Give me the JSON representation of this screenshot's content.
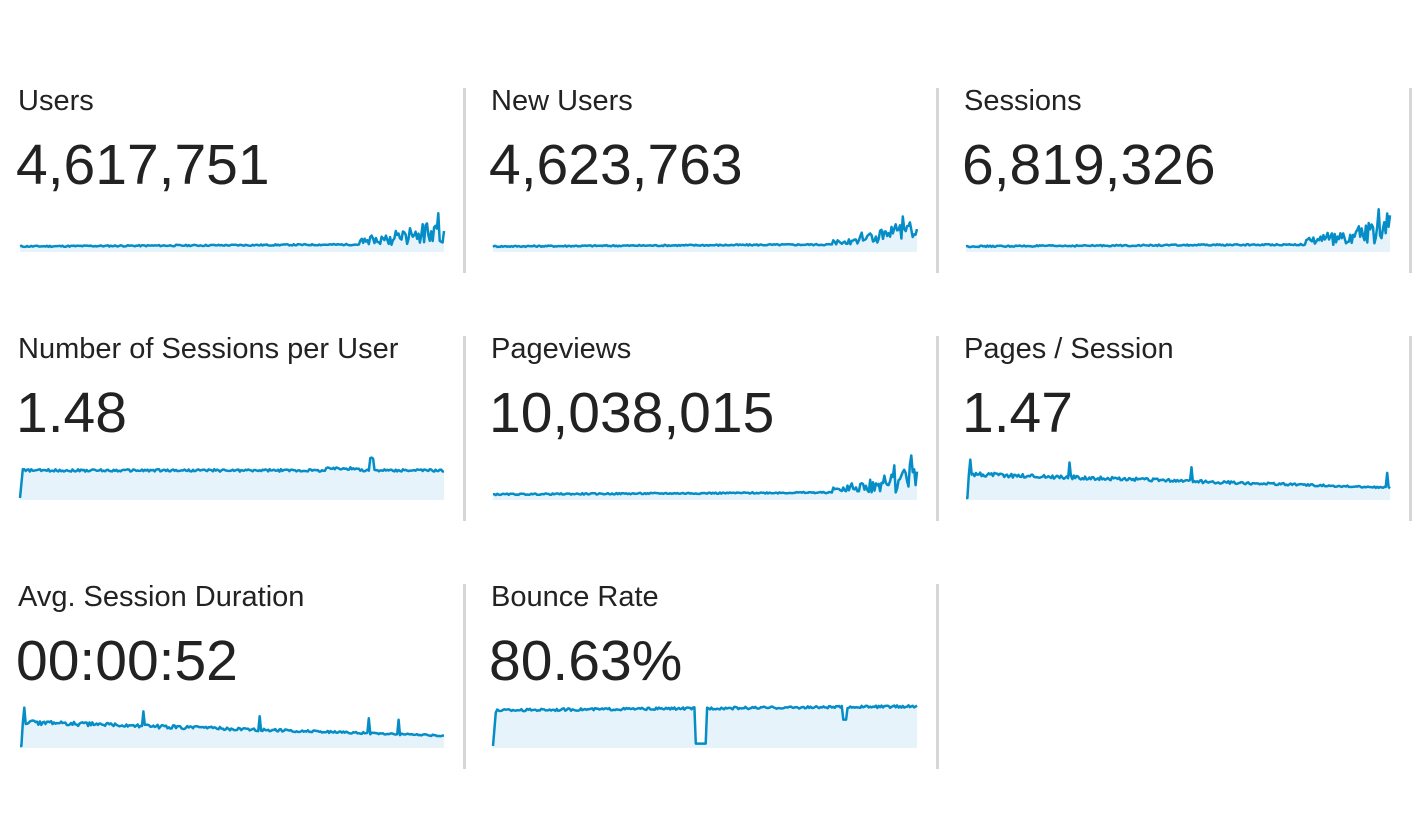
{
  "accent_color": "#058dc7",
  "fill_color": "#e6f3fa",
  "metrics": [
    {
      "label": "Users",
      "value": "4,617,751",
      "trend": "growth"
    },
    {
      "label": "New Users",
      "value": "4,623,763",
      "trend": "growth"
    },
    {
      "label": "Sessions",
      "value": "6,819,326",
      "trend": "growth"
    },
    {
      "label": "Number of Sessions per User",
      "value": "1.48",
      "trend": "flat-high"
    },
    {
      "label": "Pageviews",
      "value": "10,038,015",
      "trend": "growth"
    },
    {
      "label": "Pages / Session",
      "value": "1.47",
      "trend": "decline-low"
    },
    {
      "label": "Avg. Session Duration",
      "value": "00:00:52",
      "trend": "decline-low"
    },
    {
      "label": "Bounce Rate",
      "value": "80.63%",
      "trend": "high-flat-dip"
    }
  ]
}
